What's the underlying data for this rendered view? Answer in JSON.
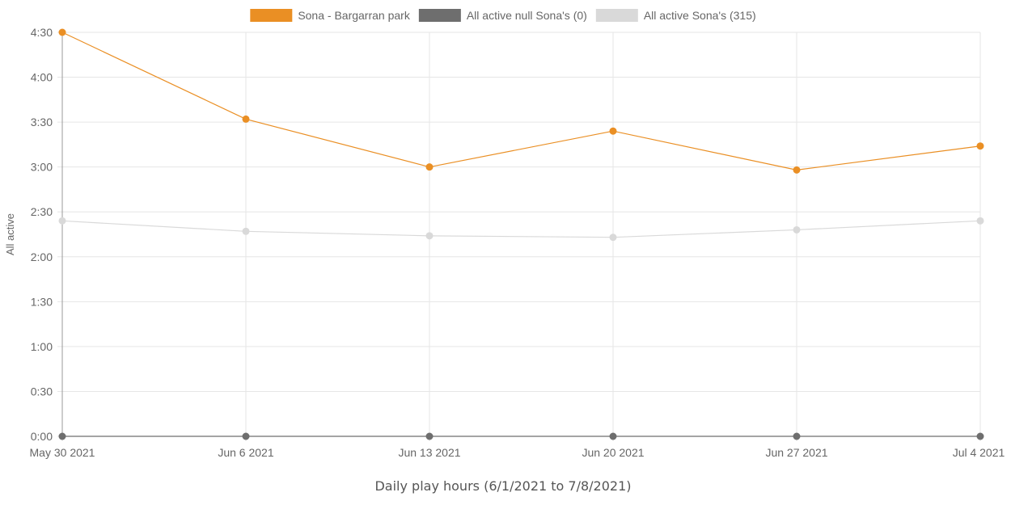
{
  "chart_data": {
    "type": "line",
    "title": "",
    "xlabel": "Daily play hours (6/1/2021 to 7/8/2021)",
    "ylabel": "All active",
    "categories": [
      "May 30 2021",
      "Jun 6 2021",
      "Jun 13 2021",
      "Jun 20 2021",
      "Jun 27 2021",
      "Jul 4 2021"
    ],
    "y_ticks": [
      "0:00",
      "0:30",
      "1:00",
      "1:30",
      "2:00",
      "2:30",
      "3:00",
      "3:30",
      "4:00",
      "4:30"
    ],
    "ylim_minutes": [
      0,
      270
    ],
    "grid": true,
    "legend_position": "top-center",
    "series": [
      {
        "name": "Sona - Bargarran park",
        "color": "#ea8f24",
        "values_minutes": [
          270,
          212,
          180,
          204,
          178,
          194
        ]
      },
      {
        "name": "All active null Sona's (0)",
        "color": "#6e6e6e",
        "values_minutes": [
          0,
          0,
          0,
          0,
          0,
          0
        ]
      },
      {
        "name": "All active Sona's (315)",
        "color": "#d9d9d9",
        "values_minutes": [
          144,
          137,
          134,
          133,
          138,
          144
        ]
      }
    ]
  }
}
